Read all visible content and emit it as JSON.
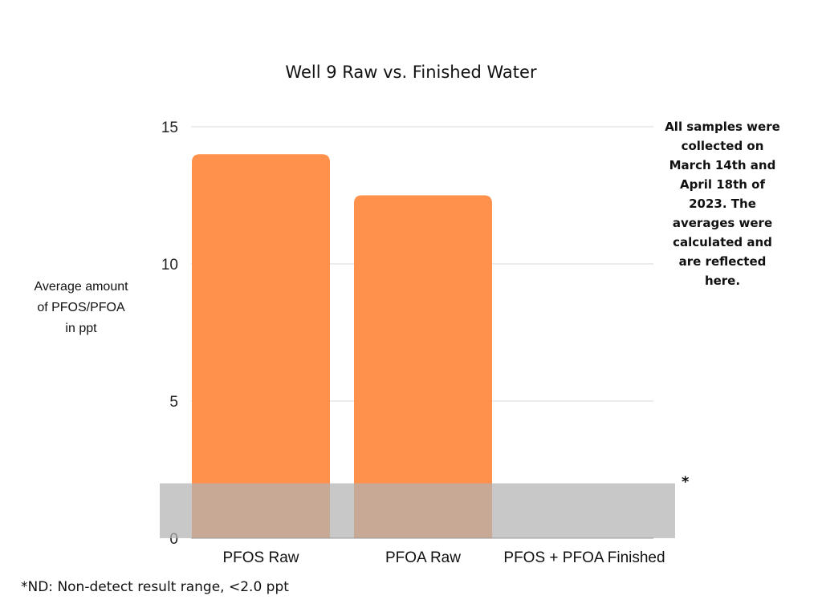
{
  "chart_data": {
    "type": "bar",
    "title": "Well 9 Raw vs. Finished Water",
    "ylabel_lines": [
      "Average amount",
      "of PFOS/PFOA",
      "in ppt"
    ],
    "xlabel": "",
    "categories": [
      "PFOS Raw",
      "PFOA Raw",
      "PFOS + PFOA Finished"
    ],
    "values": [
      14,
      12.5,
      0
    ],
    "ylim": [
      0,
      15
    ],
    "yticks": [
      0,
      5,
      10,
      15
    ],
    "grid": true,
    "legend": "none",
    "non_detect_band": {
      "from": 0,
      "to": 2.0,
      "marker": "*"
    },
    "note_lines": [
      "All samples were",
      "collected on",
      "March 14th and",
      "April 18th of",
      "2023. The",
      "averages were",
      "calculated and",
      "are reflected",
      "here."
    ],
    "footnote": "*ND: Non-detect result range, <2.0 ppt",
    "colors": {
      "bar": "#FF914D",
      "band": "#B3B3B3",
      "grid": "#D9D9D9"
    }
  }
}
